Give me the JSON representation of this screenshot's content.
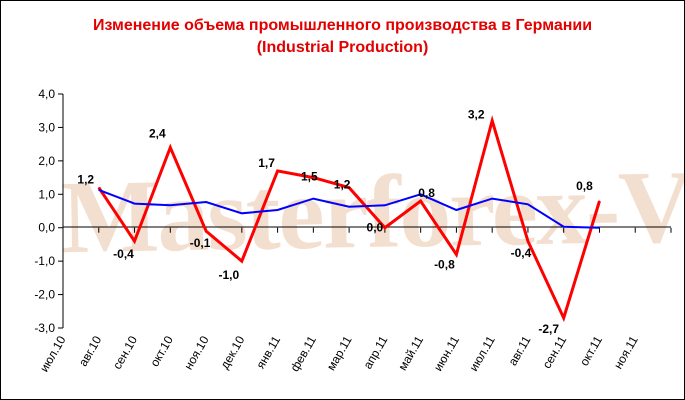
{
  "chart_data": {
    "type": "line",
    "title": "Изменение объема промышленного производства в Германии",
    "subtitle": "(Industrial Production)",
    "watermark": "Masterforex-V",
    "categories": [
      "июл.10",
      "авг.10",
      "сен.10",
      "окт.10",
      "ноя.10",
      "дек.10",
      "янв.11",
      "фев.11",
      "мар.11",
      "апр.11",
      "май.11",
      "июн.11",
      "июл.11",
      "авг.11",
      "сен.11",
      "окт.11",
      "ноя.11"
    ],
    "series": [
      {
        "color": "#ff0000",
        "values": [
          null,
          1.2,
          -0.4,
          2.4,
          -0.1,
          -1.0,
          1.7,
          1.5,
          1.2,
          0.0,
          0.8,
          -0.8,
          3.2,
          -0.4,
          -2.7,
          0.8,
          null
        ],
        "labels": [
          "",
          "1,2",
          "-0,4",
          "2,4",
          "-0,1",
          "-1,0",
          "1,7",
          "1,5",
          "1,2",
          "0,0",
          "0,8",
          "-0,8",
          "3,2",
          "-0,4",
          "-2,7",
          "0,8",
          ""
        ]
      },
      {
        "color": "#0000ff",
        "values": [
          null,
          1.13,
          0.72,
          0.67,
          0.77,
          0.43,
          0.53,
          0.87,
          0.63,
          0.67,
          1.0,
          0.53,
          0.87,
          0.7,
          0.03,
          0.0,
          null
        ]
      }
    ],
    "y_ticks": [
      "-3,0",
      "-2,0",
      "-1,0",
      "0,0",
      "1,0",
      "2,0",
      "3,0",
      "4,0"
    ],
    "ylim": [
      -3,
      4
    ],
    "grid": false
  }
}
